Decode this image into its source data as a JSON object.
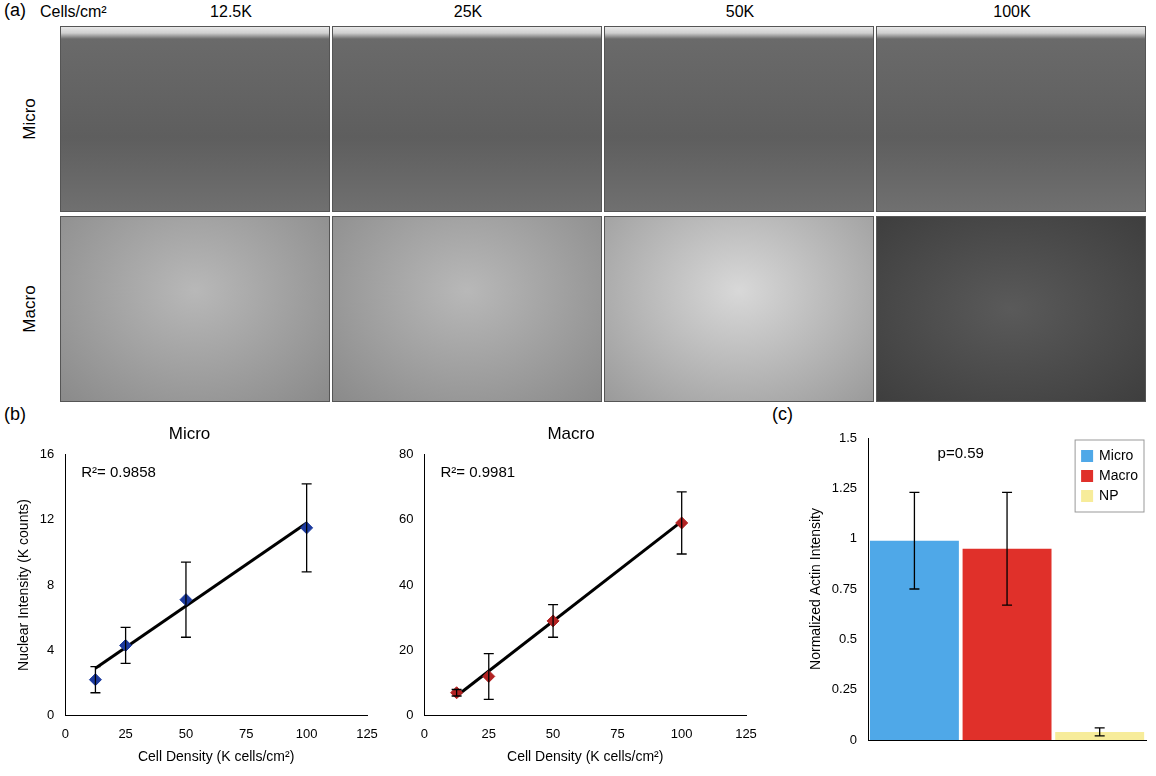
{
  "panel_labels": {
    "a": "(a)",
    "b": "(b)",
    "c": "(c)"
  },
  "panel_a": {
    "column_header": "Cells/cm²",
    "columns": [
      "12.5K",
      "25K",
      "50K",
      "100K"
    ],
    "rows": [
      "Micro",
      "Macro"
    ]
  },
  "chart_data": [
    {
      "type": "scatter",
      "title": "Micro",
      "x_label": "Cell Density (K cells/cm²)",
      "y_label": "Nuclear Intensity (K counts)",
      "x": [
        12.5,
        25,
        50,
        100
      ],
      "values": [
        2.2,
        4.3,
        7.1,
        11.5
      ],
      "errors": [
        0.8,
        1.1,
        2.3,
        2.7
      ],
      "trend_line": {
        "x": [
          12.5,
          100
        ],
        "values": [
          2.9,
          11.8
        ]
      },
      "annotation": "R²= 0.9858",
      "color": "#1c3a9e",
      "marker": "diamond",
      "xlim": [
        0,
        125
      ],
      "xticks": [
        0,
        25,
        50,
        75,
        100,
        125
      ],
      "ylim": [
        0,
        16
      ],
      "yticks": [
        0,
        4,
        8,
        12,
        16
      ],
      "grid": false
    },
    {
      "type": "scatter",
      "title": "Macro",
      "x_label": "Cell Density (K cells/cm²)",
      "x": [
        12.5,
        25,
        50,
        100
      ],
      "values": [
        7,
        12,
        29,
        59
      ],
      "errors": [
        1,
        7,
        5,
        9.5
      ],
      "trend_line": {
        "x": [
          12.5,
          100
        ],
        "values": [
          6,
          59.5
        ]
      },
      "annotation": "R²= 0.9981",
      "color": "#b22222",
      "marker": "diamond",
      "xlim": [
        0,
        125
      ],
      "xticks": [
        0,
        25,
        50,
        75,
        100,
        125
      ],
      "ylim": [
        0,
        80
      ],
      "yticks": [
        0,
        20,
        40,
        60,
        80
      ],
      "grid": false
    },
    {
      "type": "bar",
      "y_label": "Normalized Actin Intensity",
      "categories": [
        "Micro",
        "Macro",
        "NP"
      ],
      "values": [
        0.99,
        0.95,
        0.04
      ],
      "errors": [
        0.24,
        0.28,
        0.02
      ],
      "colors": [
        "#4fa8e8",
        "#e0302a",
        "#f7ec9a"
      ],
      "annotation": "p=0.59",
      "legend": "upper right",
      "tick_labels": "y",
      "ylim": [
        0,
        1.5
      ],
      "yticks": [
        0,
        0.25,
        0.5,
        0.75,
        1,
        1.25,
        1.5
      ],
      "grid": false
    }
  ]
}
